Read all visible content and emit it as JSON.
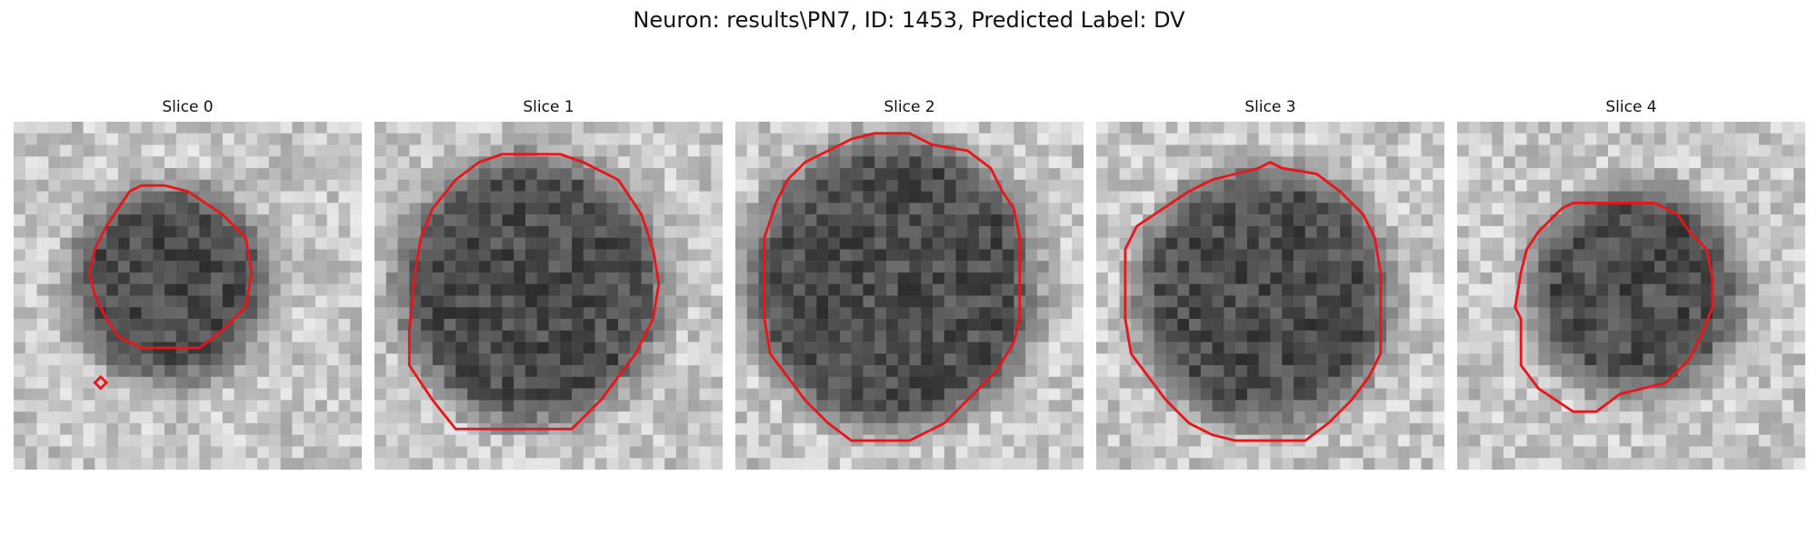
{
  "figure": {
    "title": "Neuron: results\\PN7, ID: 1453, Predicted Label: DV"
  },
  "panels": [
    {
      "title": "Slice 0",
      "cell": {
        "cx": 13.5,
        "cy": 14.0,
        "r": 8.5,
        "darkness": 0.55
      },
      "contour": [
        [
          10,
          6
        ],
        [
          11,
          5.5
        ],
        [
          13,
          5.5
        ],
        [
          15,
          6
        ],
        [
          18,
          8
        ],
        [
          20,
          10
        ],
        [
          20.5,
          13
        ],
        [
          20,
          16
        ],
        [
          18,
          18
        ],
        [
          16,
          19.5
        ],
        [
          11,
          19.5
        ],
        [
          9,
          18.5
        ],
        [
          8,
          17
        ],
        [
          7,
          15
        ],
        [
          6.5,
          13
        ],
        [
          7,
          11
        ],
        [
          8,
          9
        ]
      ],
      "extra_marker": [
        7.5,
        22.5
      ]
    },
    {
      "title": "Slice 1",
      "cell": {
        "cx": 13.5,
        "cy": 14.5,
        "r": 11.5,
        "darkness": 0.7
      },
      "contour": [
        [
          7,
          5
        ],
        [
          9,
          3.5
        ],
        [
          11,
          2.8
        ],
        [
          16,
          2.8
        ],
        [
          18,
          3.5
        ],
        [
          21,
          5
        ],
        [
          23,
          8
        ],
        [
          24,
          11
        ],
        [
          24.5,
          14
        ],
        [
          24,
          17
        ],
        [
          22.5,
          20
        ],
        [
          21,
          22
        ],
        [
          19.5,
          24
        ],
        [
          17,
          26.5
        ],
        [
          7,
          26.5
        ],
        [
          5,
          24
        ],
        [
          3,
          21
        ],
        [
          3,
          18
        ],
        [
          3.5,
          13
        ],
        [
          4,
          10
        ],
        [
          5,
          7.5
        ]
      ]
    },
    {
      "title": "Slice 2",
      "cell": {
        "cx": 13.5,
        "cy": 14.0,
        "r": 12.5,
        "darkness": 0.72
      },
      "contour": [
        [
          6,
          3.5
        ],
        [
          8,
          2.5
        ],
        [
          10,
          1.5
        ],
        [
          12,
          1
        ],
        [
          15,
          1
        ],
        [
          17,
          2
        ],
        [
          20,
          2.5
        ],
        [
          22,
          4
        ],
        [
          23,
          6
        ],
        [
          24,
          7.5
        ],
        [
          24.5,
          10
        ],
        [
          24.5,
          17
        ],
        [
          24,
          19
        ],
        [
          22.5,
          21.5
        ],
        [
          20,
          24
        ],
        [
          18,
          26
        ],
        [
          15,
          27.5
        ],
        [
          10,
          27.5
        ],
        [
          8,
          26
        ],
        [
          6,
          24
        ],
        [
          4.5,
          22
        ],
        [
          3,
          20
        ],
        [
          2.5,
          17
        ],
        [
          2.5,
          10
        ],
        [
          3.5,
          7
        ],
        [
          4.5,
          5
        ]
      ]
    },
    {
      "title": "Slice 3",
      "cell": {
        "cx": 14.5,
        "cy": 15.0,
        "r": 11.0,
        "darkness": 0.62
      },
      "contour": [
        [
          8,
          6
        ],
        [
          10,
          5
        ],
        [
          12,
          4.5
        ],
        [
          14,
          4
        ],
        [
          15,
          3.5
        ],
        [
          16,
          4
        ],
        [
          19,
          4.5
        ],
        [
          21,
          6
        ],
        [
          23,
          8
        ],
        [
          24,
          10
        ],
        [
          24.5,
          13
        ],
        [
          24.5,
          20
        ],
        [
          23.5,
          22
        ],
        [
          22,
          24
        ],
        [
          20,
          26
        ],
        [
          18,
          27.5
        ],
        [
          12,
          27.5
        ],
        [
          10,
          27
        ],
        [
          8,
          26
        ],
        [
          6,
          24
        ],
        [
          4.5,
          22
        ],
        [
          3,
          20
        ],
        [
          2.5,
          17
        ],
        [
          2.5,
          11
        ],
        [
          3.5,
          9
        ],
        [
          5,
          8
        ]
      ]
    },
    {
      "title": "Slice 4",
      "cell": {
        "cx": 15.5,
        "cy": 14.5,
        "r": 9.0,
        "darkness": 0.62
      },
      "contour": [
        [
          9,
          7.5
        ],
        [
          10,
          7
        ],
        [
          17,
          7
        ],
        [
          19,
          8
        ],
        [
          20,
          9.5
        ],
        [
          21.5,
          11
        ],
        [
          22,
          13.5
        ],
        [
          22,
          16
        ],
        [
          21,
          18.5
        ],
        [
          20,
          20.5
        ],
        [
          18,
          22.5
        ],
        [
          14,
          23.5
        ],
        [
          12,
          25
        ],
        [
          10,
          25
        ],
        [
          7,
          23
        ],
        [
          5.5,
          21
        ],
        [
          5.5,
          17
        ],
        [
          5,
          16
        ],
        [
          5.5,
          13
        ],
        [
          6,
          11
        ],
        [
          7,
          9.5
        ]
      ]
    }
  ],
  "style": {
    "contour_color": "#e8161a"
  }
}
